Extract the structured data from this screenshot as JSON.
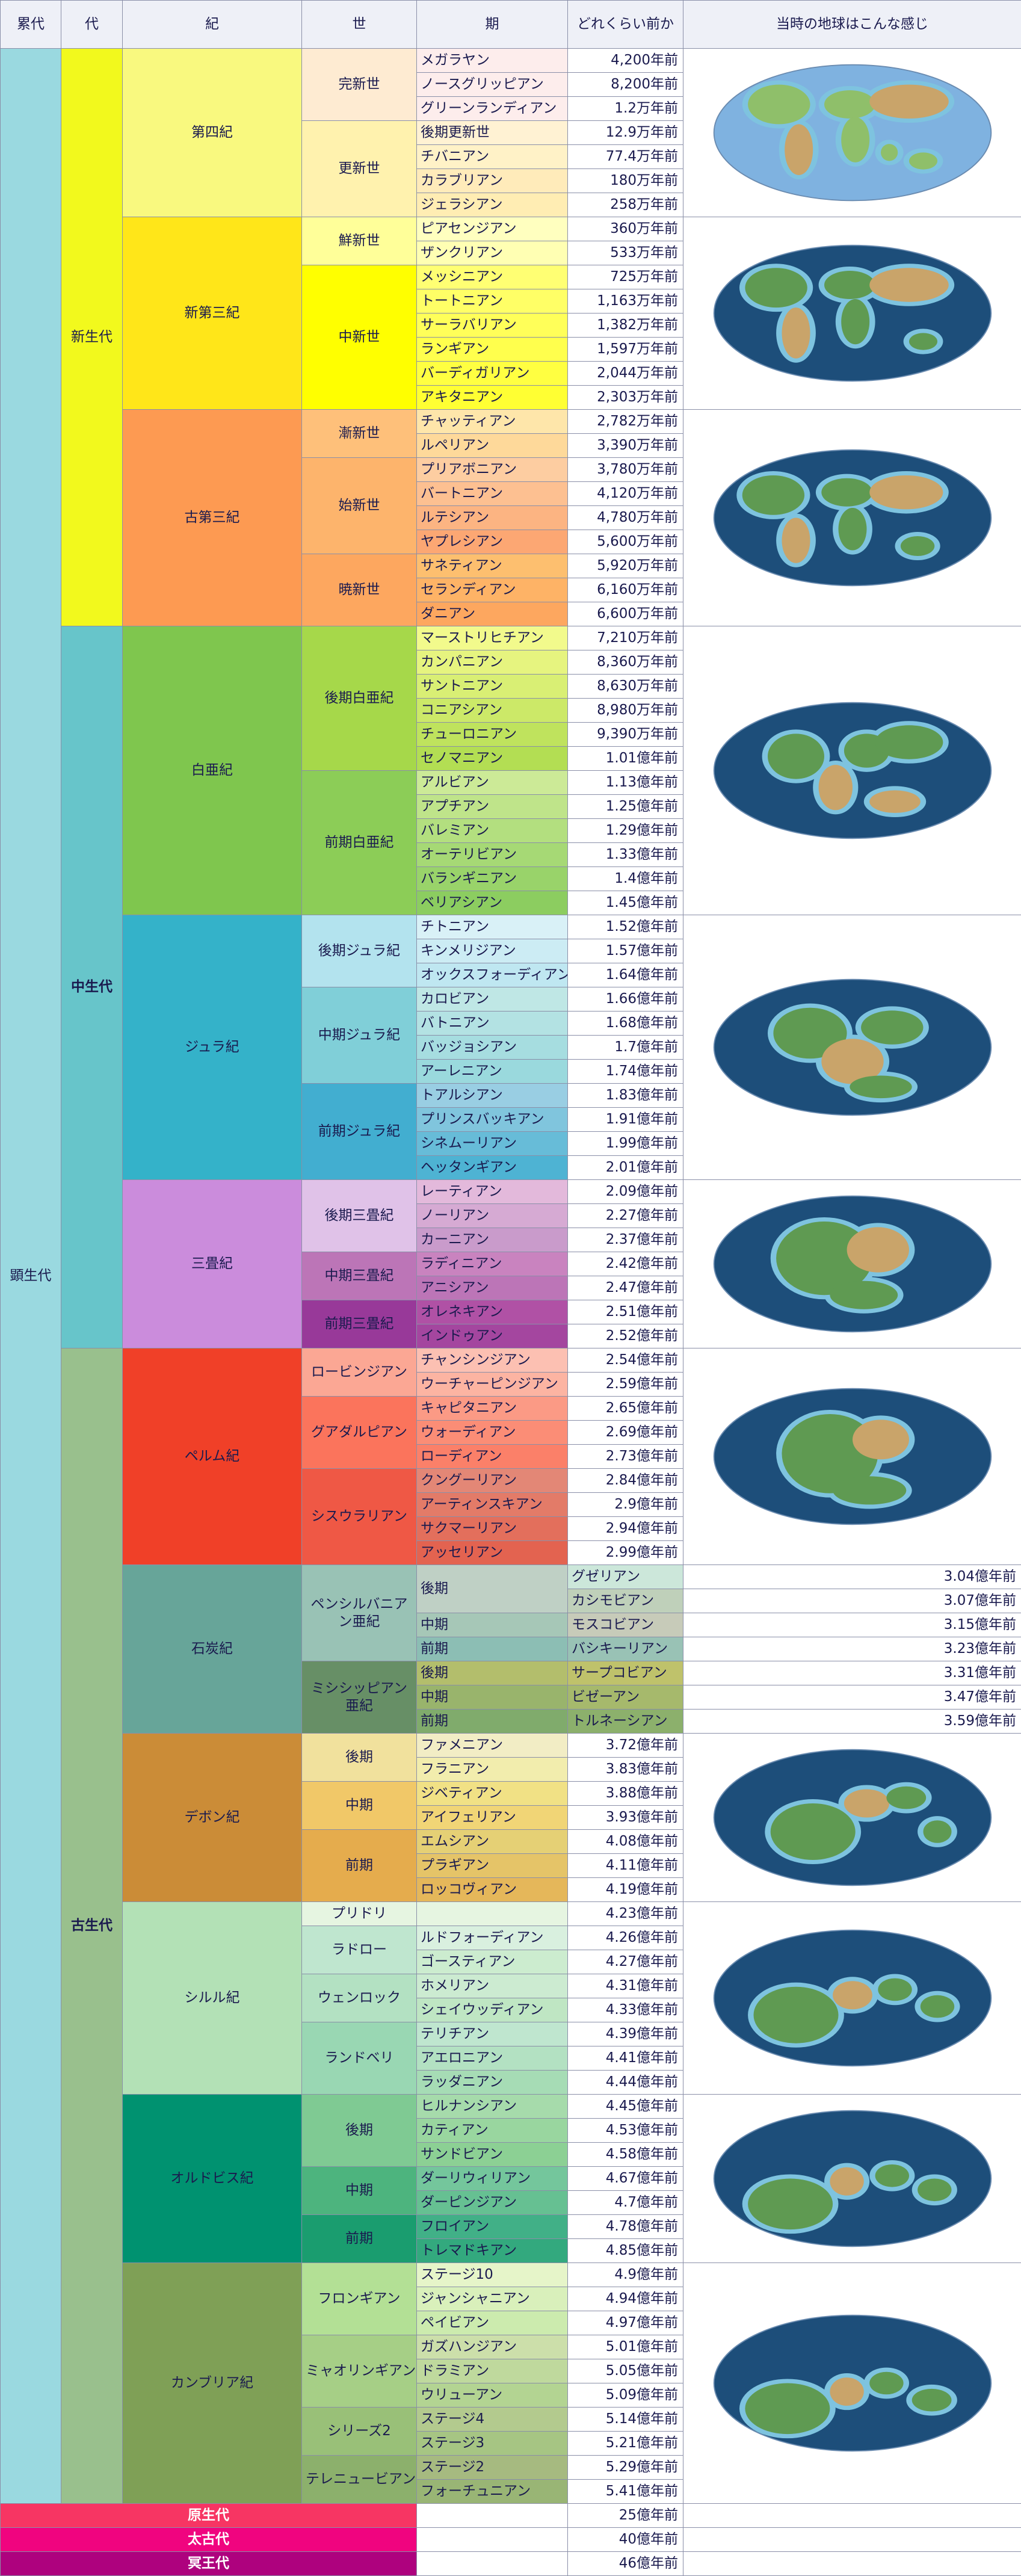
{
  "header": {
    "eon": "累代",
    "era": "代",
    "period": "紀",
    "epoch": "世",
    "age": "期",
    "years_ago": "どれくらい前か",
    "earth": "当時の地球はこんな感じ"
  },
  "eons": {
    "phanerozoic": "顕生代",
    "proterozoic": "原生代",
    "archean": "太古代",
    "hadean": "冥王代"
  },
  "eras": {
    "cenozoic": "新生代",
    "mesozoic": "中生代",
    "paleozoic": "古生代"
  },
  "precambrian_ages": [
    "25億年前",
    "40億年前",
    "46億年前"
  ],
  "colors": {
    "phanerozoic": "#9ad9e0",
    "cenozoic": "#f2f91d",
    "mesozoic": "#67c5ca",
    "paleozoic": "#99c08d",
    "proterozoic": "#f73563",
    "archean": "#f0047f",
    "hadean": "#ae027e",
    "ocean": "#1d4e7a"
  },
  "groups": [
    {
      "name": "第四紀",
      "color": "#f9f97f",
      "map": "quaternary",
      "rows": [
        {
          "epoch": {
            "text": "完新世",
            "span": 3,
            "color": "#feebd2"
          },
          "age": "メガラヤン",
          "ma": "4,200年前",
          "color": "#fdedec"
        },
        {
          "age": "ノースグリッピアン",
          "ma": "8,200年前",
          "color": "#fdedec"
        },
        {
          "age": "グリーンランディアン",
          "ma": "1.2万年前",
          "color": "#fdedec"
        },
        {
          "epoch": {
            "text": "更新世",
            "span": 4,
            "color": "#fff2ae"
          },
          "age": "後期更新世",
          "ma": "12.9万年前",
          "color": "#fff2d3"
        },
        {
          "age": "チバニアン",
          "ma": "77.4万年前",
          "color": "#fff2c7"
        },
        {
          "age": "カラブリアン",
          "ma": "180万年前",
          "color": "#ffebba"
        },
        {
          "age": "ジェラシアン",
          "ma": "258万年前",
          "color": "#ffedb3"
        }
      ]
    },
    {
      "name": "新第三紀",
      "color": "#ffe619",
      "map": "neogene",
      "rows": [
        {
          "epoch": {
            "text": "鮮新世",
            "span": 2,
            "color": "#ffff99"
          },
          "age": "ピアセンジアン",
          "ma": "360万年前",
          "color": "#ffffbf"
        },
        {
          "age": "ザンクリアン",
          "ma": "533万年前",
          "color": "#ffffb3"
        },
        {
          "epoch": {
            "text": "中新世",
            "span": 6,
            "color": "#ffff00"
          },
          "age": "メッシニアン",
          "ma": "725万年前",
          "color": "#ffff73"
        },
        {
          "age": "トートニアン",
          "ma": "1,163万年前",
          "color": "#ffff66"
        },
        {
          "age": "サーラバリアン",
          "ma": "1,382万年前",
          "color": "#ffff59"
        },
        {
          "age": "ランギアン",
          "ma": "1,597万年前",
          "color": "#ffff4d"
        },
        {
          "age": "バーディガリアン",
          "ma": "2,044万年前",
          "color": "#ffff41"
        },
        {
          "age": "アキタニアン",
          "ma": "2,303万年前",
          "color": "#ffff33"
        }
      ]
    },
    {
      "name": "古第三紀",
      "color": "#fd9a52",
      "map": "paleogene",
      "rows": [
        {
          "epoch": {
            "text": "漸新世",
            "span": 2,
            "color": "#fec07a"
          },
          "age": "チャッティアン",
          "ma": "2,782万年前",
          "color": "#fee6aa"
        },
        {
          "age": "ルペリアン",
          "ma": "3,390万年前",
          "color": "#fed99a"
        },
        {
          "epoch": {
            "text": "始新世",
            "span": 4,
            "color": "#fdb46c"
          },
          "age": "プリアボニアン",
          "ma": "3,780万年前",
          "color": "#fdcda1"
        },
        {
          "age": "バートニアン",
          "ma": "4,120万年前",
          "color": "#fdc091"
        },
        {
          "age": "ルテシアン",
          "ma": "4,780万年前",
          "color": "#fcb482"
        },
        {
          "age": "ヤプレシアン",
          "ma": "5,600万年前",
          "color": "#fca773"
        },
        {
          "epoch": {
            "text": "暁新世",
            "span": 3,
            "color": "#fda75f"
          },
          "age": "サネティアン",
          "ma": "5,920万年前",
          "color": "#fdbf6f"
        },
        {
          "age": "セランディアン",
          "ma": "6,160万年前",
          "color": "#feb366"
        },
        {
          "age": "ダニアン",
          "ma": "6,600万年前",
          "color": "#fda75f"
        }
      ]
    },
    {
      "name": "白亜紀",
      "color": "#7fc64e",
      "map": "cretaceous",
      "rows": [
        {
          "epoch": {
            "text": "後期白亜紀",
            "span": 6,
            "color": "#a6d84a"
          },
          "age": "マーストリヒチアン",
          "ma": "7,210万年前",
          "color": "#f2fa8c"
        },
        {
          "age": "カンパニアン",
          "ma": "8,360万年前",
          "color": "#e6f47f"
        },
        {
          "age": "サントニアン",
          "ma": "8,630万年前",
          "color": "#d9ef74"
        },
        {
          "age": "コニアシアン",
          "ma": "8,980万年前",
          "color": "#cce968"
        },
        {
          "age": "チューロニアン",
          "ma": "9,390万年前",
          "color": "#bfe35d"
        },
        {
          "age": "セノマニアン",
          "ma": "1.01億年前",
          "color": "#b3de53"
        },
        {
          "epoch": {
            "text": "前期白亜紀",
            "span": 6,
            "color": "#8ccd57"
          },
          "age": "アルビアン",
          "ma": "1.13億年前",
          "color": "#ccea97"
        },
        {
          "age": "アプチアン",
          "ma": "1.25億年前",
          "color": "#bfe48a"
        },
        {
          "age": "バレミアン",
          "ma": "1.29億年前",
          "color": "#b3df7f"
        },
        {
          "age": "オーテリビアン",
          "ma": "1.33億年前",
          "color": "#a6d975"
        },
        {
          "age": "バランギニアン",
          "ma": "1.4億年前",
          "color": "#99d36a"
        },
        {
          "age": "ベリアシアン",
          "ma": "1.45億年前",
          "color": "#8ccd60"
        }
      ]
    },
    {
      "name": "ジュラ紀",
      "color": "#34b2c9",
      "map": "jurassic",
      "rows": [
        {
          "epoch": {
            "text": "後期ジュラ紀",
            "span": 3,
            "color": "#b3e3ee"
          },
          "age": "チトニアン",
          "ma": "1.52億年前",
          "color": "#d9f1f7"
        },
        {
          "age": "キンメリジアン",
          "ma": "1.57億年前",
          "color": "#ccecf4"
        },
        {
          "age": "オックスフォーディアン",
          "ma": "1.64億年前",
          "color": "#bfe7f1"
        },
        {
          "epoch": {
            "text": "中期ジュラ紀",
            "span": 4,
            "color": "#80cfd8"
          },
          "age": "カロビアン",
          "ma": "1.66億年前",
          "color": "#bfe7e5"
        },
        {
          "age": "バトニアン",
          "ma": "1.68億年前",
          "color": "#b3e2e3"
        },
        {
          "age": "バッジョシアン",
          "ma": "1.7億年前",
          "color": "#a6dde0"
        },
        {
          "age": "アーレニアン",
          "ma": "1.74億年前",
          "color": "#9ad9dd"
        },
        {
          "epoch": {
            "text": "前期ジュラ紀",
            "span": 4,
            "color": "#42aed0"
          },
          "age": "トアルシアン",
          "ma": "1.83億年前",
          "color": "#99cee3"
        },
        {
          "age": "プリンスバッキアン",
          "ma": "1.91億年前",
          "color": "#80c5dd"
        },
        {
          "age": "シネムーリアン",
          "ma": "1.99億年前",
          "color": "#67bcd8"
        },
        {
          "age": "ヘッタンギアン",
          "ma": "2.01億年前",
          "color": "#4eb3d3"
        }
      ]
    },
    {
      "name": "三畳紀",
      "color": "#cb8cdc",
      "map": "triassic",
      "rows": [
        {
          "epoch": {
            "text": "後期三畳紀",
            "span": 3,
            "color": "#e0c2e8"
          },
          "age": "レーティアン",
          "ma": "2.09億年前",
          "color": "#e3b9db"
        },
        {
          "age": "ノーリアン",
          "ma": "2.27億年前",
          "color": "#d6aad3"
        },
        {
          "age": "カーニアン",
          "ma": "2.37億年前",
          "color": "#c99bcb"
        },
        {
          "epoch": {
            "text": "中期三畳紀",
            "span": 2,
            "color": "#bc75b7"
          },
          "age": "ラディニアン",
          "ma": "2.42億年前",
          "color": "#c983bf"
        },
        {
          "age": "アニシアン",
          "ma": "2.47億年前",
          "color": "#bc75b7"
        },
        {
          "epoch": {
            "text": "前期三畳紀",
            "span": 2,
            "color": "#983999"
          },
          "age": "オレネキアン",
          "ma": "2.51億年前",
          "color": "#b051a5"
        },
        {
          "age": "インドゥアン",
          "ma": "2.52億年前",
          "color": "#a4469f"
        }
      ]
    },
    {
      "name": "ペルム紀",
      "color": "#f04028",
      "map": "permian",
      "rows": [
        {
          "epoch": {
            "text": "ロービンジアン",
            "span": 2,
            "color": "#fba794"
          },
          "age": "チャンシンジアン",
          "ma": "2.54億年前",
          "color": "#fcc0b2"
        },
        {
          "age": "ウーチャーピンジアン",
          "ma": "2.59億年前",
          "color": "#fcb4a2"
        },
        {
          "epoch": {
            "text": "グアダルピアン",
            "span": 3,
            "color": "#fb745c"
          },
          "age": "キャピタニアン",
          "ma": "2.65億年前",
          "color": "#fb9a85"
        },
        {
          "age": "ウォーディアン",
          "ma": "2.69億年前",
          "color": "#fb8d76"
        },
        {
          "age": "ローディアン",
          "ma": "2.73億年前",
          "color": "#fb8069"
        },
        {
          "epoch": {
            "text": "シスウラリアン",
            "span": 4,
            "color": "#ef5845"
          },
          "age": "クングーリアン",
          "ma": "2.84億年前",
          "color": "#e38776"
        },
        {
          "age": "アーティンスキアン",
          "ma": "2.9億年前",
          "color": "#e37b68"
        },
        {
          "age": "サクマーリアン",
          "ma": "2.94億年前",
          "color": "#e36f5c"
        },
        {
          "age": "アッセリアン",
          "ma": "2.99億年前",
          "color": "#e36350"
        }
      ]
    },
    {
      "name": "石炭紀",
      "color": "#67a599",
      "map": "carboniferous",
      "subs": [
        {
          "name": "ペンシルバニアン亜紀",
          "color": "#99c2b5",
          "span": 4
        },
        {
          "name": "ミシシッピアン亜紀",
          "color": "#678f66",
          "span": 3
        }
      ],
      "rows": [
        {
          "epoch": {
            "text": "後期",
            "span": 2,
            "color": "#bfd0c5"
          },
          "age": "グゼリアン",
          "ma": "3.04億年前",
          "color": "#cce7da"
        },
        {
          "age": "カシモビアン",
          "ma": "3.07億年前",
          "color": "#bfd0ba"
        },
        {
          "epoch": {
            "text": "中期",
            "span": 1,
            "color": "#a6c7b7"
          },
          "age": "モスコビアン",
          "ma": "3.15億年前",
          "color": "#c7cbb9"
        },
        {
          "epoch": {
            "text": "前期",
            "span": 1,
            "color": "#8cbeb4"
          },
          "age": "バシキーリアン",
          "ma": "3.23億年前",
          "color": "#99c2b5"
        },
        {
          "epoch": {
            "text": "後期",
            "span": 1,
            "color": "#b3be6c"
          },
          "age": "サープコビアン",
          "ma": "3.31億年前",
          "color": "#bfc26b"
        },
        {
          "epoch": {
            "text": "中期",
            "span": 1,
            "color": "#99b46c"
          },
          "age": "ビゼーアン",
          "ma": "3.47億年前",
          "color": "#a6b96c"
        },
        {
          "epoch": {
            "text": "前期",
            "span": 1,
            "color": "#80ab6c"
          },
          "age": "トルネーシアン",
          "ma": "3.59億年前",
          "color": "#8cb06c"
        }
      ]
    },
    {
      "name": "デボン紀",
      "color": "#cb8c37",
      "map": "devonian",
      "rows": [
        {
          "epoch": {
            "text": "後期",
            "span": 2,
            "color": "#f1e19d"
          },
          "age": "ファメニアン",
          "ma": "3.72億年前",
          "color": "#f2edc5"
        },
        {
          "age": "フラニアン",
          "ma": "3.83億年前",
          "color": "#f2edad"
        },
        {
          "epoch": {
            "text": "中期",
            "span": 2,
            "color": "#f1c868"
          },
          "age": "ジベティアン",
          "ma": "3.88億年前",
          "color": "#f1e185"
        },
        {
          "age": "アイフェリアン",
          "ma": "3.93億年前",
          "color": "#f1d576"
        },
        {
          "epoch": {
            "text": "前期",
            "span": 3,
            "color": "#e5ac4d"
          },
          "age": "エムシアン",
          "ma": "4.08億年前",
          "color": "#e5d075"
        },
        {
          "age": "プラギアン",
          "ma": "4.11億年前",
          "color": "#e5c468"
        },
        {
          "age": "ロッコヴィアン",
          "ma": "4.19億年前",
          "color": "#e5b75a"
        }
      ]
    },
    {
      "name": "シルル紀",
      "color": "#b3e1b6",
      "map": "silurian",
      "rows": [
        {
          "epoch": {
            "text": "プリドリ",
            "span": 1,
            "color": "#e6f5e1"
          },
          "age": "",
          "ma": "4.23億年前",
          "color": "#e6f5e1"
        },
        {
          "epoch": {
            "text": "ラドロー",
            "span": 2,
            "color": "#bfe6cf"
          },
          "age": "ルドフォーディアン",
          "ma": "4.26億年前",
          "color": "#d9f0df"
        },
        {
          "age": "ゴースティアン",
          "ma": "4.27億年前",
          "color": "#cceccf"
        },
        {
          "epoch": {
            "text": "ウェンロック",
            "span": 2,
            "color": "#b3e1c2"
          },
          "age": "ホメリアン",
          "ma": "4.31億年前",
          "color": "#ccebd1"
        },
        {
          "age": "シェイウッディアン",
          "ma": "4.33億年前",
          "color": "#bfe6c3"
        },
        {
          "epoch": {
            "text": "ランドベリ",
            "span": 3,
            "color": "#99d7b3"
          },
          "age": "テリチアン",
          "ma": "4.39億年前",
          "color": "#bfe6cf"
        },
        {
          "age": "アエロニアン",
          "ma": "4.41億年前",
          "color": "#b3e1c2"
        },
        {
          "age": "ラッダニアン",
          "ma": "4.44億年前",
          "color": "#a6dcb5"
        }
      ]
    },
    {
      "name": "オルドビス紀",
      "color": "#009270",
      "map": "ordovician",
      "rows": [
        {
          "epoch": {
            "text": "後期",
            "span": 3,
            "color": "#7fca93"
          },
          "age": "ヒルナンシアン",
          "ma": "4.45億年前",
          "color": "#a6dbab"
        },
        {
          "age": "カティアン",
          "ma": "4.53億年前",
          "color": "#99d69f"
        },
        {
          "age": "サンドビアン",
          "ma": "4.58億年前",
          "color": "#8cd094"
        },
        {
          "epoch": {
            "text": "中期",
            "span": 2,
            "color": "#4db47e"
          },
          "age": "ダーリウィリアン",
          "ma": "4.67億年前",
          "color": "#74c69c"
        },
        {
          "age": "ダーピンジアン",
          "ma": "4.7億年前",
          "color": "#66c092"
        },
        {
          "epoch": {
            "text": "前期",
            "span": 2,
            "color": "#1a9d6f"
          },
          "age": "フロイアン",
          "ma": "4.78億年前",
          "color": "#41b087"
        },
        {
          "age": "トレマドキアン",
          "ma": "4.85億年前",
          "color": "#33a97e"
        }
      ]
    },
    {
      "name": "カンブリア紀",
      "color": "#7fa056",
      "map": "cambrian",
      "rows": [
        {
          "epoch": {
            "text": "フロンギアン",
            "span": 3,
            "color": "#b3e095"
          },
          "age": "ステージ10",
          "ma": "4.9億年前",
          "color": "#e6f5c9"
        },
        {
          "age": "ジャンシャニアン",
          "ma": "4.94億年前",
          "color": "#d9f0bb"
        },
        {
          "age": "ペイビアン",
          "ma": "4.97億年前",
          "color": "#ccebae"
        },
        {
          "epoch": {
            "text": "ミャオリンギアン",
            "span": 3,
            "color": "#a6cf86"
          },
          "age": "ガズハンジアン",
          "ma": "5.01億年前",
          "color": "#ccdfaa"
        },
        {
          "age": "ドラミアン",
          "ma": "5.05億年前",
          "color": "#bfd99d"
        },
        {
          "age": "ウリューアン",
          "ma": "5.09億年前",
          "color": "#b3d492"
        },
        {
          "epoch": {
            "text": "シリーズ2",
            "span": 2,
            "color": "#99c078"
          },
          "age": "ステージ4",
          "ma": "5.14億年前",
          "color": "#b3ca8e"
        },
        {
          "age": "ステージ3",
          "ma": "5.21億年前",
          "color": "#a6c583"
        },
        {
          "epoch": {
            "text": "テレニュービアン",
            "span": 2,
            "color": "#8cb06c"
          },
          "age": "ステージ2",
          "ma": "5.29億年前",
          "color": "#a6ba80"
        },
        {
          "age": "フォーチュニアン",
          "ma": "5.41億年前",
          "color": "#99b575"
        }
      ]
    }
  ]
}
